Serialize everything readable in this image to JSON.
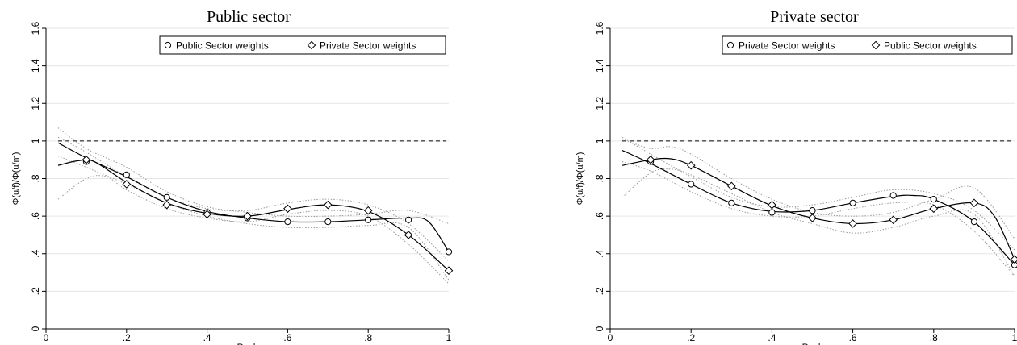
{
  "chart_data": [
    {
      "type": "line",
      "title": "Public sector",
      "xlabel": "Rank",
      "ylabel": "Φ(u/f)/Φ(u/m)",
      "xlim": [
        0,
        1
      ],
      "ylim": [
        0,
        1.6
      ],
      "x_ticks": [
        "0",
        ".2",
        ".4",
        ".6",
        ".8",
        "1"
      ],
      "y_ticks": [
        "0",
        ".2",
        ".4",
        ".6",
        ".8",
        "1",
        "1.2",
        "1.4",
        "1.6"
      ],
      "x_tick_values": [
        0,
        0.2,
        0.4,
        0.6,
        0.8,
        1
      ],
      "y_tick_values": [
        0,
        0.2,
        0.4,
        0.6,
        0.8,
        1,
        1.2,
        1.4,
        1.6
      ],
      "grid": true,
      "legend_position": "top-right",
      "reference_line": {
        "y": 1,
        "style": "dashed"
      },
      "series": [
        {
          "name": "Public Sector weights",
          "marker": "circle",
          "x": [
            0.1,
            0.2,
            0.3,
            0.4,
            0.5,
            0.6,
            0.7,
            0.8,
            0.9,
            1.0
          ],
          "y": [
            0.89,
            0.82,
            0.7,
            0.62,
            0.59,
            0.57,
            0.57,
            0.58,
            0.58,
            0.41
          ],
          "fit_x": [
            0.03,
            0.1,
            0.2,
            0.3,
            0.4,
            0.5,
            0.6,
            0.7,
            0.8,
            0.9,
            0.95,
            1.0
          ],
          "fit_y": [
            0.99,
            0.91,
            0.81,
            0.7,
            0.625,
            0.59,
            0.57,
            0.57,
            0.58,
            0.59,
            0.57,
            0.41
          ]
        },
        {
          "name": "Private Sector weights",
          "marker": "diamond",
          "x": [
            0.1,
            0.2,
            0.3,
            0.4,
            0.5,
            0.6,
            0.7,
            0.8,
            0.9,
            1.0
          ],
          "y": [
            0.9,
            0.77,
            0.66,
            0.61,
            0.6,
            0.64,
            0.66,
            0.63,
            0.5,
            0.31
          ],
          "fit_x": [
            0.03,
            0.08,
            0.12,
            0.2,
            0.3,
            0.4,
            0.5,
            0.6,
            0.7,
            0.8,
            0.9,
            1.0
          ],
          "fit_y": [
            0.87,
            0.895,
            0.89,
            0.78,
            0.67,
            0.615,
            0.6,
            0.635,
            0.66,
            0.625,
            0.5,
            0.31
          ]
        }
      ],
      "ci_bands": [
        {
          "upper_x": [
            0.03,
            0.1,
            0.2,
            0.3,
            0.4,
            0.5,
            0.6,
            0.7,
            0.8,
            0.9,
            1.0
          ],
          "upper_y": [
            1.07,
            0.96,
            0.86,
            0.73,
            0.65,
            0.62,
            0.6,
            0.6,
            0.61,
            0.63,
            0.56
          ],
          "lower_x": [
            0.03,
            0.1,
            0.2,
            0.3,
            0.4,
            0.5,
            0.6,
            0.7,
            0.8,
            0.9,
            1.0
          ],
          "lower_y": [
            0.92,
            0.86,
            0.77,
            0.67,
            0.6,
            0.56,
            0.54,
            0.54,
            0.55,
            0.54,
            0.26
          ]
        },
        {
          "upper_x": [
            0.03,
            0.1,
            0.2,
            0.3,
            0.4,
            0.5,
            0.6,
            0.7,
            0.8,
            0.9,
            1.0
          ],
          "upper_y": [
            1.02,
            0.94,
            0.81,
            0.7,
            0.64,
            0.63,
            0.67,
            0.69,
            0.66,
            0.56,
            0.36
          ],
          "lower_x": [
            0.03,
            0.1,
            0.15,
            0.2,
            0.3,
            0.4,
            0.5,
            0.6,
            0.7,
            0.8,
            0.9,
            1.0
          ],
          "lower_y": [
            0.69,
            0.8,
            0.81,
            0.74,
            0.64,
            0.59,
            0.57,
            0.61,
            0.63,
            0.6,
            0.45,
            0.24
          ]
        }
      ]
    },
    {
      "type": "line",
      "title": "Private sector",
      "xlabel": "Rank",
      "ylabel": "Φ(u/f)/Φ(u/m)",
      "xlim": [
        0,
        1
      ],
      "ylim": [
        0,
        1.6
      ],
      "x_ticks": [
        "0",
        ".2",
        ".4",
        ".6",
        ".8",
        "1"
      ],
      "y_ticks": [
        "0",
        ".2",
        ".4",
        ".6",
        ".8",
        "1",
        "1.2",
        "1.4",
        "1.6"
      ],
      "x_tick_values": [
        0,
        0.2,
        0.4,
        0.6,
        0.8,
        1
      ],
      "y_tick_values": [
        0,
        0.2,
        0.4,
        0.6,
        0.8,
        1,
        1.2,
        1.4,
        1.6
      ],
      "grid": true,
      "legend_position": "top-right",
      "reference_line": {
        "y": 1,
        "style": "dashed"
      },
      "series": [
        {
          "name": "Private Sector weights",
          "marker": "circle",
          "x": [
            0.1,
            0.2,
            0.3,
            0.4,
            0.5,
            0.6,
            0.7,
            0.8,
            0.9,
            1.0
          ],
          "y": [
            0.89,
            0.77,
            0.67,
            0.62,
            0.63,
            0.67,
            0.71,
            0.69,
            0.57,
            0.34
          ],
          "fit_x": [
            0.03,
            0.1,
            0.2,
            0.3,
            0.4,
            0.5,
            0.6,
            0.7,
            0.75,
            0.8,
            0.9,
            1.0
          ],
          "fit_y": [
            0.95,
            0.88,
            0.77,
            0.67,
            0.625,
            0.63,
            0.67,
            0.705,
            0.71,
            0.69,
            0.57,
            0.34
          ]
        },
        {
          "name": "Public Sector weights",
          "marker": "diamond",
          "x": [
            0.1,
            0.2,
            0.3,
            0.4,
            0.5,
            0.6,
            0.7,
            0.8,
            0.9,
            1.0
          ],
          "y": [
            0.9,
            0.87,
            0.76,
            0.66,
            0.59,
            0.56,
            0.58,
            0.64,
            0.67,
            0.37
          ],
          "fit_x": [
            0.03,
            0.1,
            0.15,
            0.2,
            0.3,
            0.4,
            0.5,
            0.6,
            0.7,
            0.8,
            0.9,
            0.95,
            1.0
          ],
          "fit_y": [
            0.87,
            0.9,
            0.905,
            0.87,
            0.76,
            0.655,
            0.59,
            0.56,
            0.58,
            0.64,
            0.67,
            0.6,
            0.37
          ]
        }
      ],
      "ci_bands": [
        {
          "upper_x": [
            0.03,
            0.1,
            0.2,
            0.3,
            0.4,
            0.5,
            0.6,
            0.7,
            0.8,
            0.9,
            1.0
          ],
          "upper_y": [
            1.02,
            0.93,
            0.81,
            0.7,
            0.65,
            0.66,
            0.7,
            0.74,
            0.72,
            0.63,
            0.42
          ],
          "lower_x": [
            0.03,
            0.1,
            0.2,
            0.3,
            0.4,
            0.5,
            0.6,
            0.7,
            0.8,
            0.9,
            1.0
          ],
          "lower_y": [
            0.89,
            0.84,
            0.73,
            0.64,
            0.6,
            0.6,
            0.64,
            0.67,
            0.66,
            0.52,
            0.28
          ]
        },
        {
          "upper_x": [
            0.03,
            0.1,
            0.15,
            0.2,
            0.3,
            0.4,
            0.5,
            0.6,
            0.7,
            0.8,
            0.9,
            1.0
          ],
          "upper_y": [
            1.01,
            0.96,
            0.97,
            0.93,
            0.8,
            0.69,
            0.62,
            0.6,
            0.62,
            0.69,
            0.75,
            0.48
          ],
          "lower_x": [
            0.03,
            0.1,
            0.15,
            0.2,
            0.3,
            0.4,
            0.5,
            0.6,
            0.7,
            0.8,
            0.9,
            1.0
          ],
          "lower_y": [
            0.7,
            0.83,
            0.85,
            0.82,
            0.72,
            0.62,
            0.56,
            0.51,
            0.54,
            0.6,
            0.61,
            0.28
          ]
        }
      ]
    }
  ]
}
